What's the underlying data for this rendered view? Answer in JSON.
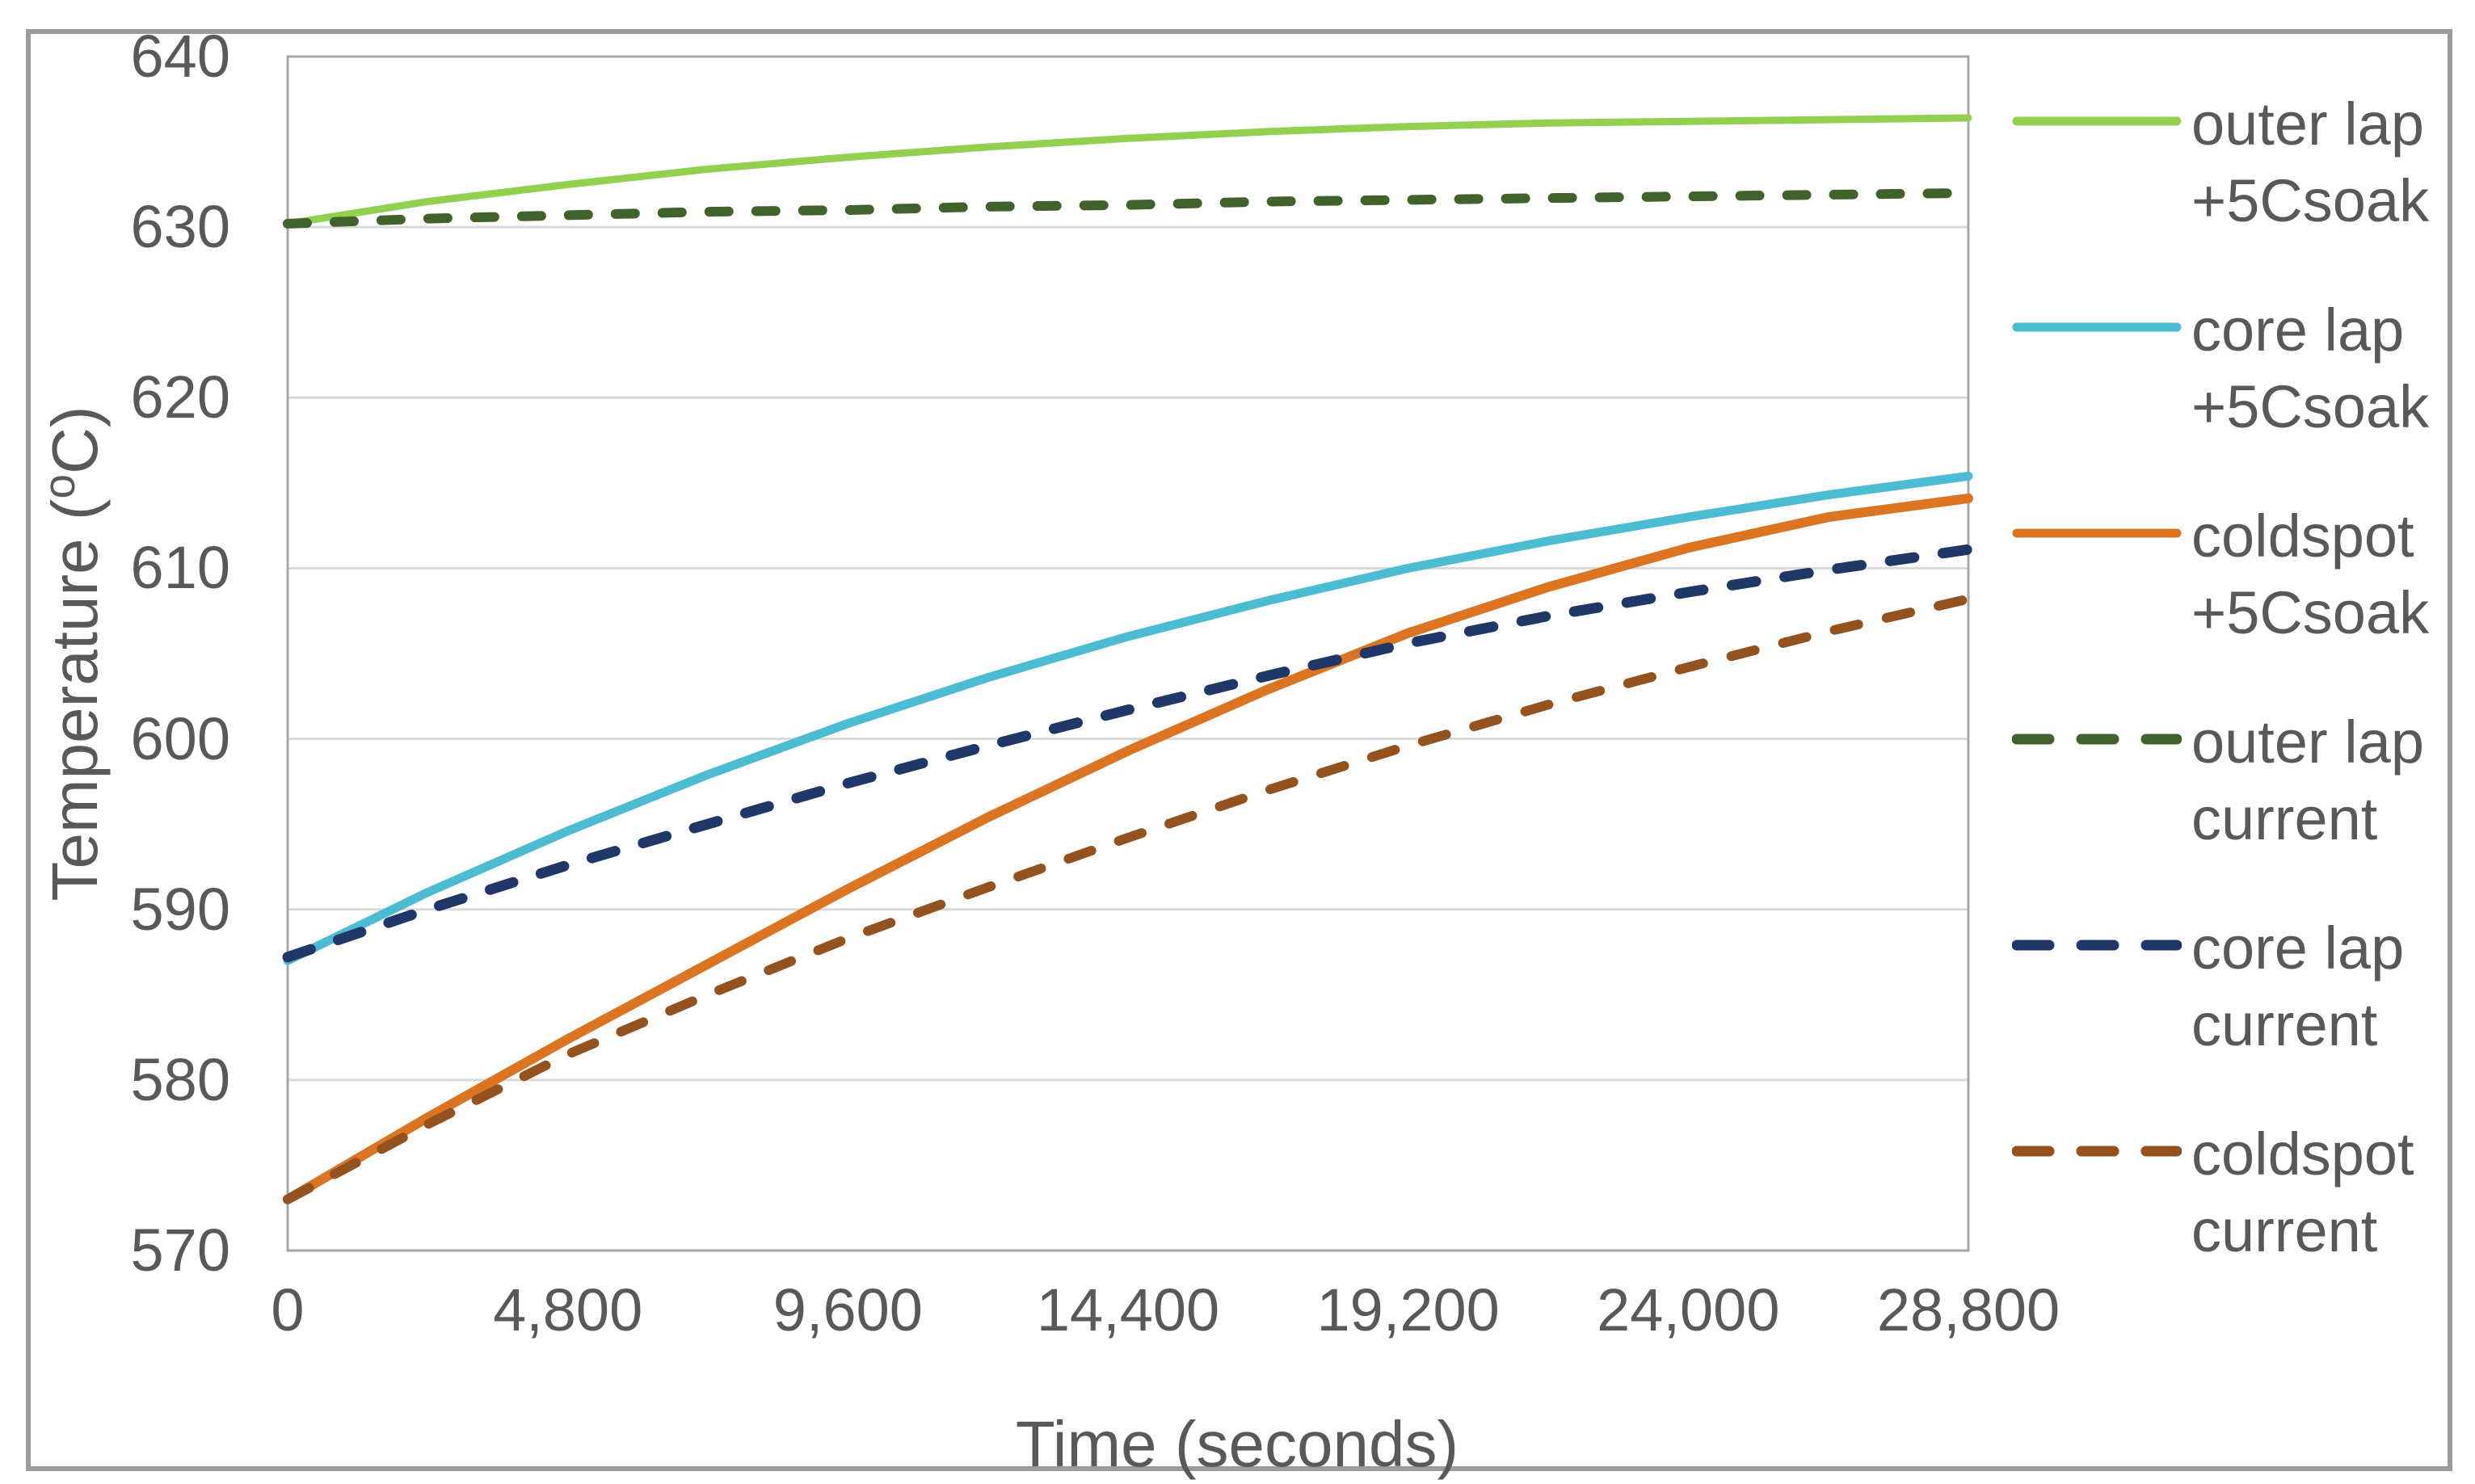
{
  "figure": {
    "background": "#FFFFFF",
    "outer_border_color": "#9C9C9C"
  },
  "chart_data": {
    "type": "line",
    "title": "",
    "xlabel": "Time (seconds)",
    "ylabel_parts": {
      "pre": "Temperature (",
      "sup": "o",
      "post": "C)"
    },
    "xlim": [
      0,
      28800
    ],
    "ylim": [
      570,
      640
    ],
    "grid": "horizontal-only",
    "legend_position": "right",
    "axis_text_color": "#595959",
    "gridline_color": "#D9D9D9",
    "plot_border_color": "#A8A8A8",
    "x_ticks": [
      {
        "value": 0,
        "label": "0"
      },
      {
        "value": 4800,
        "label": "4,800"
      },
      {
        "value": 9600,
        "label": "9,600"
      },
      {
        "value": 14400,
        "label": "14,400"
      },
      {
        "value": 19200,
        "label": "19,200"
      },
      {
        "value": 24000,
        "label": "24,000"
      },
      {
        "value": 28800,
        "label": "28,800"
      }
    ],
    "y_ticks": [
      {
        "value": 570,
        "label": "570"
      },
      {
        "value": 580,
        "label": "580"
      },
      {
        "value": 590,
        "label": "590"
      },
      {
        "value": 600,
        "label": "600"
      },
      {
        "value": 610,
        "label": "610"
      },
      {
        "value": 620,
        "label": "620"
      },
      {
        "value": 630,
        "label": "630"
      },
      {
        "value": 640,
        "label": "640"
      }
    ],
    "x": [
      0,
      2400,
      4800,
      7200,
      9600,
      12000,
      14400,
      16800,
      19200,
      21600,
      24000,
      26400,
      28800
    ],
    "series": [
      {
        "name": "outer lap +5Csoak",
        "label_lines": [
          "outer lap",
          "+5Csoak"
        ],
        "color": "#92D050",
        "style": "solid",
        "width": 9,
        "values": [
          630.2,
          631.5,
          632.5,
          633.4,
          634.1,
          634.7,
          635.2,
          635.6,
          635.9,
          636.1,
          636.2,
          636.3,
          636.4
        ]
      },
      {
        "name": "core lap +5Csoak",
        "label_lines": [
          "core lap",
          "+5Csoak"
        ],
        "color": "#4BBCD2",
        "style": "solid",
        "width": 11,
        "values": [
          587.0,
          591.0,
          594.6,
          597.9,
          600.9,
          603.6,
          606.0,
          608.1,
          610.0,
          611.6,
          613.0,
          614.3,
          615.4
        ]
      },
      {
        "name": "coldspot +5Csoak",
        "label_lines": [
          "coldspot",
          "+5Csoak"
        ],
        "color": "#DC7521",
        "style": "solid",
        "width": 12,
        "values": [
          573.0,
          577.8,
          582.4,
          586.8,
          591.2,
          595.4,
          599.3,
          602.9,
          606.2,
          608.9,
          611.2,
          613.0,
          614.1
        ]
      },
      {
        "name": "outer lap current",
        "label_lines": [
          "outer lap",
          "current"
        ],
        "color": "#41622A",
        "style": "dashed",
        "width": 12,
        "dash": [
          24,
          34
        ],
        "values": [
          630.2,
          630.5,
          630.7,
          630.9,
          631.0,
          631.2,
          631.3,
          631.5,
          631.6,
          631.7,
          631.8,
          631.9,
          632.0
        ]
      },
      {
        "name": "core lap current",
        "label_lines": [
          "core lap",
          "current"
        ],
        "color": "#1F3868",
        "style": "dashed",
        "width": 13,
        "dash": [
          30,
          36
        ],
        "values": [
          587.2,
          590.0,
          592.6,
          595.0,
          597.4,
          599.6,
          601.7,
          603.7,
          605.6,
          607.2,
          608.6,
          609.9,
          611.1
        ]
      },
      {
        "name": "coldspot current",
        "label_lines": [
          "coldspot",
          "current"
        ],
        "color": "#93521E",
        "style": "dashed",
        "width": 12,
        "dash": [
          30,
          36
        ],
        "values": [
          573.0,
          577.4,
          581.5,
          585.0,
          588.3,
          591.3,
          594.2,
          597.0,
          599.6,
          602.0,
          604.2,
          606.3,
          608.2
        ]
      }
    ]
  }
}
